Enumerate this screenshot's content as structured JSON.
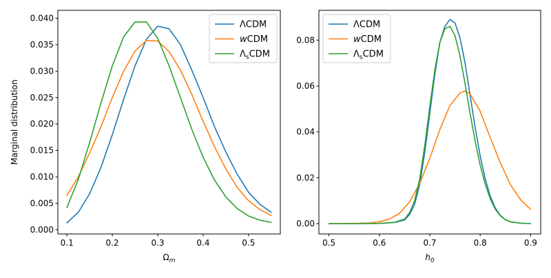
{
  "chart_data": [
    {
      "type": "line",
      "xlabel": "Ω",
      "xlabel_sub": "m",
      "ylabel": "Marginal distribution",
      "xlim": [
        0.08,
        0.57
      ],
      "ylim": [
        -0.0008,
        0.0415
      ],
      "xticks": [
        0.1,
        0.2,
        0.3,
        0.4,
        0.5
      ],
      "xtick_labels": [
        "0.1",
        "0.2",
        "0.3",
        "0.4",
        "0.5"
      ],
      "yticks": [
        0,
        0.005,
        0.01,
        0.015,
        0.02,
        0.025,
        0.03,
        0.035,
        0.04
      ],
      "ytick_labels": [
        "0.000",
        "0.005",
        "0.010",
        "0.015",
        "0.020",
        "0.025",
        "0.030",
        "0.035",
        "0.040"
      ],
      "legend_position": "top-right",
      "series": [
        {
          "name": "ΛCDM",
          "name_main": "ΛCDM",
          "name_sub": "",
          "name_tail": "",
          "name_italic": false,
          "color": "#1f77b4",
          "x": [
            0.1,
            0.125,
            0.15,
            0.175,
            0.2,
            0.225,
            0.25,
            0.275,
            0.3,
            0.325,
            0.35,
            0.375,
            0.4,
            0.425,
            0.45,
            0.475,
            0.5,
            0.525,
            0.55
          ],
          "y": [
            0.0013,
            0.0033,
            0.0068,
            0.0118,
            0.018,
            0.0247,
            0.031,
            0.036,
            0.0385,
            0.038,
            0.035,
            0.0302,
            0.025,
            0.0195,
            0.0147,
            0.0105,
            0.0071,
            0.0048,
            0.0033
          ]
        },
        {
          "name": "wCDM",
          "name_main": "w",
          "name_sub": "",
          "name_tail": "CDM",
          "name_italic": true,
          "color": "#ff7f0e",
          "x": [
            0.1,
            0.125,
            0.15,
            0.175,
            0.2,
            0.225,
            0.25,
            0.275,
            0.3,
            0.325,
            0.35,
            0.375,
            0.4,
            0.425,
            0.45,
            0.475,
            0.5,
            0.525,
            0.55
          ],
          "y": [
            0.0065,
            0.01,
            0.0145,
            0.0195,
            0.025,
            0.03,
            0.0338,
            0.0358,
            0.0357,
            0.0337,
            0.0302,
            0.0256,
            0.0205,
            0.0157,
            0.0115,
            0.008,
            0.0055,
            0.0038,
            0.0027
          ]
        },
        {
          "name": "ΛsCDM",
          "name_main": "Λ",
          "name_sub": "s",
          "name_tail": "CDM",
          "name_italic": false,
          "color": "#2ca02c",
          "x": [
            0.1,
            0.125,
            0.15,
            0.175,
            0.2,
            0.225,
            0.25,
            0.275,
            0.3,
            0.325,
            0.35,
            0.375,
            0.4,
            0.425,
            0.45,
            0.475,
            0.5,
            0.525,
            0.55
          ],
          "y": [
            0.0042,
            0.0095,
            0.0165,
            0.024,
            0.031,
            0.0365,
            0.0393,
            0.0393,
            0.0362,
            0.031,
            0.025,
            0.019,
            0.0137,
            0.0094,
            0.0062,
            0.004,
            0.0026,
            0.0018,
            0.0014
          ]
        }
      ]
    },
    {
      "type": "line",
      "xlabel": "h",
      "xlabel_sub": "0",
      "ylabel": "",
      "xlim": [
        0.48,
        0.92
      ],
      "ylim": [
        -0.0045,
        0.093
      ],
      "xticks": [
        0.5,
        0.6,
        0.7,
        0.8,
        0.9
      ],
      "xtick_labels": [
        "0.5",
        "0.6",
        "0.7",
        "0.8",
        "0.9"
      ],
      "yticks": [
        0,
        0.02,
        0.04,
        0.06,
        0.08
      ],
      "ytick_labels": [
        "0.00",
        "0.02",
        "0.04",
        "0.06",
        "0.08"
      ],
      "legend_position": "top-left",
      "series": [
        {
          "name": "ΛCDM",
          "name_main": "ΛCDM",
          "name_sub": "",
          "name_tail": "",
          "name_italic": false,
          "color": "#1f77b4",
          "x": [
            0.5,
            0.55,
            0.6,
            0.63,
            0.65,
            0.66,
            0.67,
            0.68,
            0.69,
            0.7,
            0.71,
            0.72,
            0.73,
            0.74,
            0.75,
            0.76,
            0.77,
            0.78,
            0.79,
            0.8,
            0.81,
            0.82,
            0.83,
            0.84,
            0.85,
            0.86,
            0.88,
            0.9
          ],
          "y": [
            0.0,
            0.0,
            0.0001,
            0.0005,
            0.0016,
            0.004,
            0.0085,
            0.017,
            0.031,
            0.048,
            0.065,
            0.079,
            0.086,
            0.089,
            0.0875,
            0.081,
            0.07,
            0.056,
            0.042,
            0.0295,
            0.0195,
            0.012,
            0.0068,
            0.0036,
            0.0017,
            0.0008,
            0.0002,
            0.0
          ]
        },
        {
          "name": "wCDM",
          "name_main": "w",
          "name_sub": "",
          "name_tail": "CDM",
          "name_italic": true,
          "color": "#ff7f0e",
          "x": [
            0.5,
            0.55,
            0.58,
            0.6,
            0.62,
            0.64,
            0.66,
            0.68,
            0.7,
            0.72,
            0.74,
            0.76,
            0.77,
            0.78,
            0.8,
            0.82,
            0.84,
            0.86,
            0.88,
            0.9
          ],
          "y": [
            0.0,
            0.0001,
            0.0003,
            0.0008,
            0.002,
            0.0045,
            0.0095,
            0.0175,
            0.0285,
            0.041,
            0.0515,
            0.057,
            0.0578,
            0.0565,
            0.049,
            0.0375,
            0.0265,
            0.017,
            0.0105,
            0.0062
          ]
        },
        {
          "name": "ΛsCDM",
          "name_main": "Λ",
          "name_sub": "s",
          "name_tail": "CDM",
          "name_italic": false,
          "color": "#2ca02c",
          "x": [
            0.5,
            0.55,
            0.6,
            0.63,
            0.65,
            0.66,
            0.67,
            0.68,
            0.69,
            0.7,
            0.71,
            0.72,
            0.73,
            0.74,
            0.75,
            0.76,
            0.77,
            0.78,
            0.79,
            0.8,
            0.81,
            0.82,
            0.83,
            0.84,
            0.85,
            0.86,
            0.88,
            0.9
          ],
          "y": [
            0.0,
            0.0,
            0.0001,
            0.0006,
            0.002,
            0.0048,
            0.01,
            0.0195,
            0.034,
            0.051,
            0.067,
            0.079,
            0.085,
            0.086,
            0.082,
            0.073,
            0.061,
            0.048,
            0.036,
            0.0255,
            0.0172,
            0.0108,
            0.0063,
            0.0034,
            0.0017,
            0.0008,
            0.0002,
            0.0
          ]
        }
      ]
    }
  ]
}
